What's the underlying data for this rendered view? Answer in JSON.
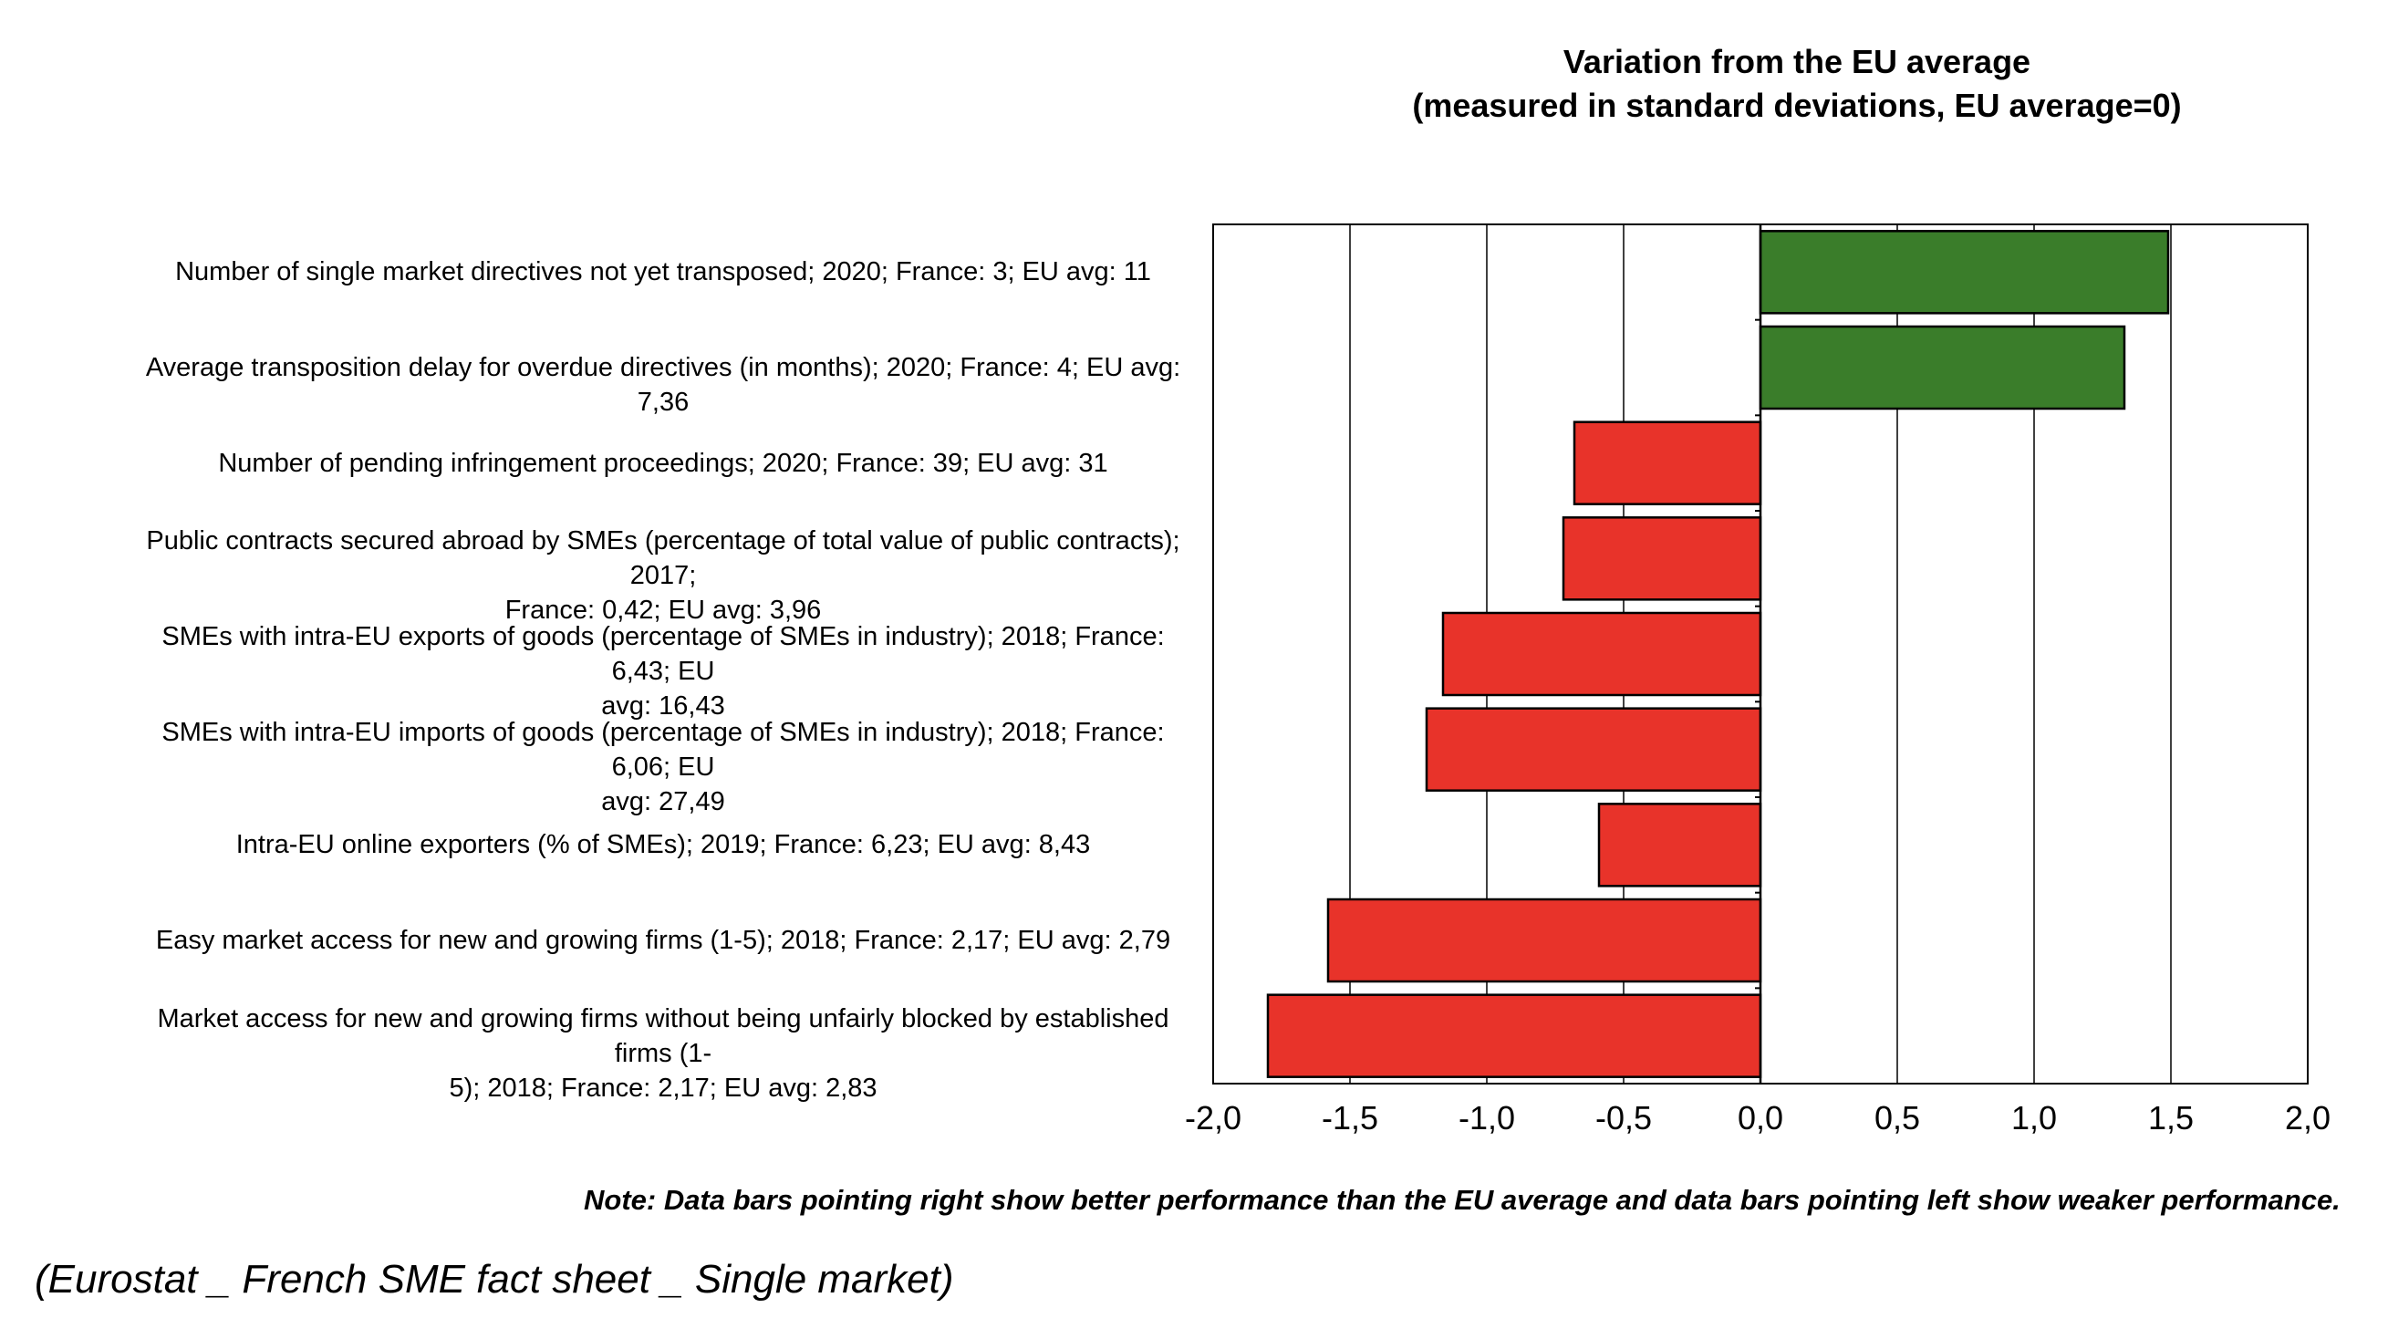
{
  "chart_data": {
    "type": "bar",
    "orientation": "horizontal",
    "title": "Variation from the EU average",
    "subtitle": "(measured in standard deviations, EU average=0)",
    "categories": [
      [
        "Number of single market directives not yet transposed; 2020; France: 3; EU avg: 11"
      ],
      [
        "Average transposition delay for overdue directives (in months); 2020; France: 4; EU avg: 7,36"
      ],
      [
        "Number of pending infringement proceedings; 2020; France: 39; EU avg: 31"
      ],
      [
        "Public contracts secured abroad by SMEs (percentage of total value of public contracts); 2017;",
        "France: 0,42; EU avg: 3,96"
      ],
      [
        "SMEs with intra-EU exports of goods (percentage of SMEs in industry); 2018; France: 6,43; EU",
        "avg: 16,43"
      ],
      [
        "SMEs with intra-EU imports of goods (percentage of SMEs in industry); 2018; France: 6,06; EU",
        "avg: 27,49"
      ],
      [
        "Intra-EU online exporters (% of SMEs); 2019; France: 6,23; EU avg: 8,43"
      ],
      [
        "Easy market access for new and growing firms (1-5); 2018; France: 2,17; EU avg: 2,79"
      ],
      [
        "Market access for new and growing firms without being unfairly blocked by established firms (1-",
        "5); 2018; France: 2,17; EU avg: 2,83"
      ]
    ],
    "values": [
      1.49,
      1.33,
      -0.68,
      -0.72,
      -1.16,
      -1.22,
      -0.59,
      -1.58,
      -1.8
    ],
    "xlim": [
      -2.0,
      2.0
    ],
    "xticks": [
      "-2,0",
      "-1,5",
      "-1,0",
      "-0,5",
      "0,0",
      "0,5",
      "1,0",
      "1,5",
      "2,0"
    ],
    "grid": "vertical",
    "colors": {
      "positive": "#3a7d2a",
      "negative": "#e8332a",
      "outline": "#000000"
    }
  },
  "note": "Note: Data bars pointing right show better performance than the EU average and data bars pointing left show weaker performance.",
  "source": "(Eurostat _ French SME fact sheet _ Single market)"
}
